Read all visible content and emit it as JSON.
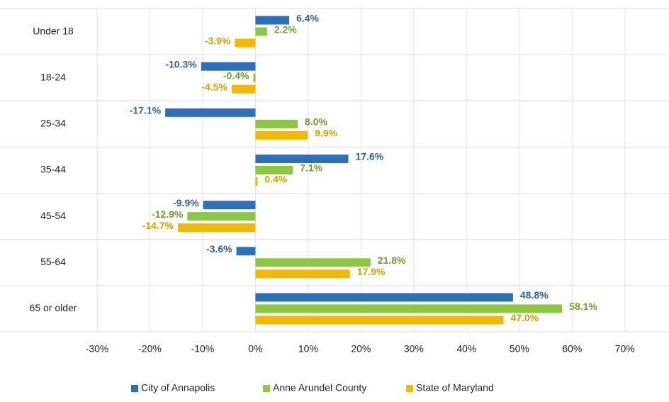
{
  "chart_data": {
    "type": "bar",
    "orientation": "horizontal",
    "categories": [
      "Under 18",
      "18-24",
      "25-34",
      "35-44",
      "45-54",
      "55-64",
      "65 or older"
    ],
    "series": [
      {
        "name": "City of Annapolis",
        "color": "#2e6fba",
        "values": [
          6.4,
          -10.3,
          -17.1,
          17.6,
          -9.9,
          -3.6,
          48.8
        ],
        "value_labels": [
          "6.4%",
          "-10.3%",
          "-17.1%",
          "17.6%",
          "-9.9%",
          "-3.6%",
          "48.8%"
        ]
      },
      {
        "name": "Anne Arundel County",
        "color": "#8dc63f",
        "values": [
          2.2,
          -0.4,
          8.0,
          7.1,
          -12.9,
          21.8,
          58.1
        ],
        "value_labels": [
          "2.2%",
          "-0.4%",
          "8.0%",
          "7.1%",
          "-12.9%",
          "21.8%",
          "58.1%"
        ]
      },
      {
        "name": "State of Maryland",
        "color": "#f5b800",
        "values": [
          -3.9,
          -4.5,
          9.9,
          0.4,
          -14.7,
          17.9,
          47.0
        ],
        "value_labels": [
          "-3.9%",
          "-4.5%",
          "9.9%",
          "0.4%",
          "-14.7%",
          "17.9%",
          "47.0%"
        ]
      }
    ],
    "xlim": [
      -30,
      75
    ],
    "xticks": [
      {
        "value": -30,
        "label": "-30%"
      },
      {
        "value": -20,
        "label": "-20%"
      },
      {
        "value": -10,
        "label": "-10%"
      },
      {
        "value": 0,
        "label": "0%"
      },
      {
        "value": 10,
        "label": "10%"
      },
      {
        "value": 20,
        "label": "20%"
      },
      {
        "value": 30,
        "label": "30%"
      },
      {
        "value": 40,
        "label": "40%"
      },
      {
        "value": 50,
        "label": "50%"
      },
      {
        "value": 60,
        "label": "60%"
      },
      {
        "value": 70,
        "label": "70%"
      }
    ],
    "grid": true,
    "legend": "bottom"
  }
}
